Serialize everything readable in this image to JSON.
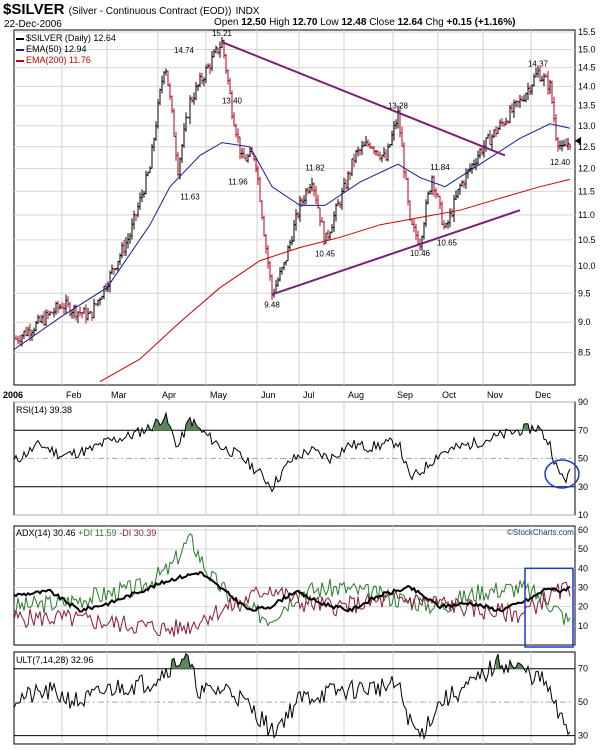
{
  "header": {
    "symbol": "$SILVER",
    "description": "(Silver - Continuous Contract (EOD))",
    "exchange": "INDX",
    "date": "22-Dec-2006",
    "open_label": "Open",
    "open": "12.50",
    "high_label": "High",
    "high": "12.70",
    "low_label": "Low",
    "low": "12.48",
    "close_label": "Close",
    "close": "12.64",
    "chg_label": "Chg",
    "chg": "+0.15 (+1.16%)"
  },
  "legend": {
    "price": "$SILVER (Daily) 12.64",
    "ema50": "EMA(50) 12.94",
    "ema200": "EMA(200) 11.76",
    "ema50_color": "#1a1a8c",
    "ema200_color": "#cc0000"
  },
  "watermark": "©StockCharts.com",
  "months": [
    "2006",
    "Feb",
    "Mar",
    "Apr",
    "May",
    "Jun",
    "Jul",
    "Aug",
    "Sep",
    "Oct",
    "Nov",
    "Dec"
  ],
  "indicators": {
    "rsi": "RSI(14) 39.38",
    "adx": "ADX(14) 30.46",
    "pdi": "+DI 11.59",
    "mdi": "-DI 30.39",
    "ult": "ULT(7,14,28) 32.96"
  },
  "chart_data": [
    {
      "type": "line",
      "title": "$SILVER (Daily)",
      "ylim": [
        8.0,
        15.5
      ],
      "yticks": [
        "8.5",
        "9.0",
        "9.5",
        "10.0",
        "10.5",
        "11.0",
        "11.5",
        "12.0",
        "12.5",
        "13.0",
        "13.5",
        "14.0",
        "14.5",
        "15.0",
        "15.5"
      ],
      "scale": "log",
      "x": [
        "2006-01",
        "2006-02",
        "2006-03",
        "2006-04",
        "2006-05",
        "2006-06",
        "2006-07",
        "2006-08",
        "2006-09",
        "2006-10",
        "2006-11",
        "2006-12"
      ],
      "series": [
        {
          "name": "$SILVER",
          "values": [
            9.0,
            9.6,
            10.5,
            14.7,
            13.4,
            9.9,
            11.2,
            12.1,
            11.6,
            11.3,
            13.9,
            12.64
          ]
        },
        {
          "name": "EMA(50)",
          "values": [
            8.6,
            9.2,
            10.0,
            11.6,
            12.4,
            11.3,
            11.1,
            11.8,
            11.9,
            11.5,
            12.6,
            12.94
          ]
        },
        {
          "name": "EMA(200)",
          "values": [
            null,
            null,
            8.2,
            8.9,
            9.8,
            10.2,
            10.5,
            10.9,
            11.1,
            11.3,
            11.6,
            11.76
          ]
        }
      ],
      "annotations": [
        "15.21",
        "14.74",
        "13.40",
        "11.96",
        "11.63",
        "9.48",
        "11.82",
        "10.45",
        "13.28",
        "10.46",
        "11.84",
        "10.65",
        "14.37",
        "12.40"
      ],
      "grid": true,
      "trendlines": 2
    },
    {
      "type": "line",
      "title": "RSI(14)",
      "ylim": [
        10,
        90
      ],
      "yticks": [
        "10",
        "30",
        "50",
        "70",
        "90"
      ],
      "series": [
        {
          "name": "RSI(14)",
          "values": [
            45,
            55,
            58,
            78,
            62,
            32,
            50,
            56,
            42,
            48,
            62,
            39.38
          ]
        }
      ]
    },
    {
      "type": "line",
      "title": "ADX(14)",
      "ylim": [
        0,
        60
      ],
      "yticks": [
        "10",
        "20",
        "30",
        "40",
        "50",
        "60"
      ],
      "series": [
        {
          "name": "ADX(14)",
          "values": [
            30,
            24,
            20,
            36,
            28,
            30,
            22,
            25,
            28,
            26,
            24,
            30.46
          ]
        },
        {
          "name": "+DI",
          "values": [
            28,
            30,
            34,
            52,
            22,
            18,
            26,
            30,
            20,
            24,
            32,
            11.59
          ]
        },
        {
          "name": "-DI",
          "values": [
            14,
            12,
            10,
            8,
            20,
            30,
            22,
            18,
            26,
            22,
            16,
            30.39
          ]
        }
      ]
    },
    {
      "type": "line",
      "title": "ULT(7,14,28)",
      "ylim": [
        25,
        80
      ],
      "yticks": [
        "30",
        "50",
        "70"
      ],
      "series": [
        {
          "name": "ULT(7,14,28)",
          "values": [
            52,
            58,
            60,
            78,
            58,
            36,
            52,
            56,
            44,
            50,
            70,
            32.96
          ]
        }
      ]
    }
  ]
}
